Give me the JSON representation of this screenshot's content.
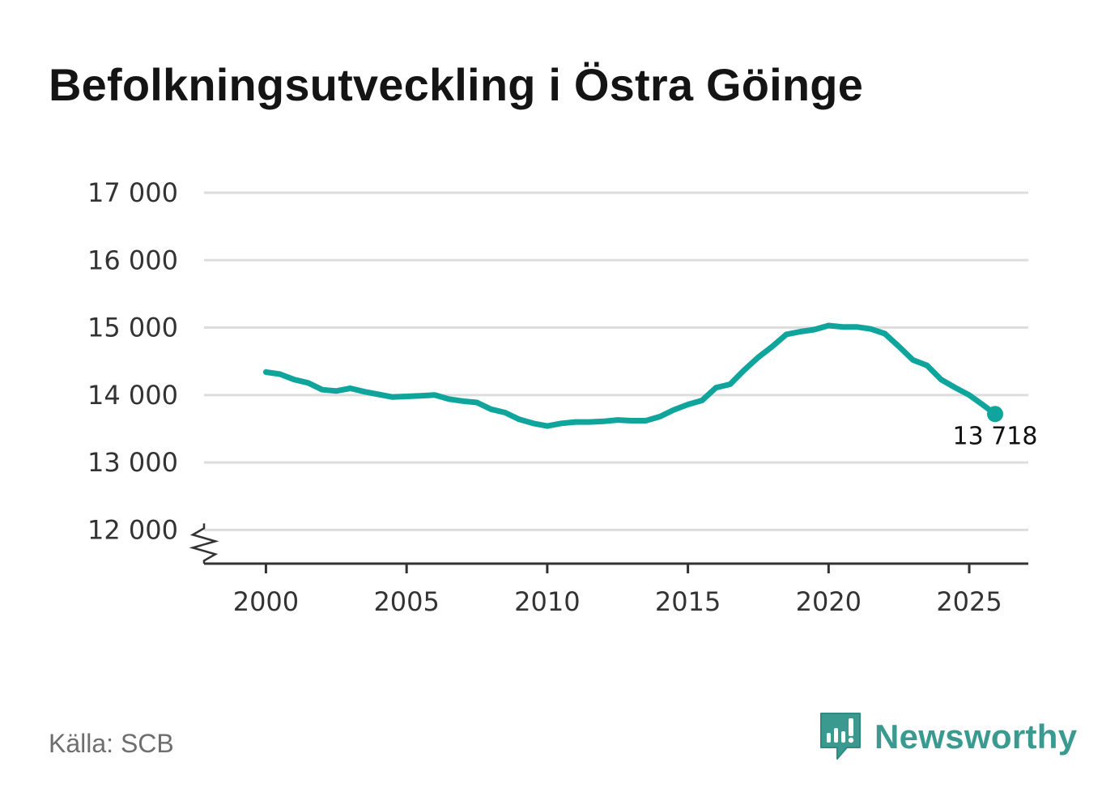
{
  "title": "Befolkningsutveckling i Östra Göinge",
  "source": "Källa: SCB",
  "brand": {
    "name": "Newsworthy",
    "logo_icon": "newsworthy-logo-icon",
    "color": "#3a9a90"
  },
  "chart_data": {
    "type": "line",
    "title": "Befolkningsutveckling i Östra Göinge",
    "xlabel": "",
    "ylabel": "",
    "xlim": [
      1997.8,
      2027.1
    ],
    "ylim": [
      11500,
      17000
    ],
    "x_ticks": [
      2000,
      2005,
      2010,
      2015,
      2020,
      2025
    ],
    "x_tick_labels": [
      "2000",
      "2005",
      "2010",
      "2015",
      "2020",
      "2025"
    ],
    "y_ticks": [
      12000,
      13000,
      14000,
      15000,
      16000,
      17000
    ],
    "y_tick_labels": [
      "12 000",
      "13 000",
      "14 000",
      "15 000",
      "16 000",
      "17 000"
    ],
    "y_axis_break": true,
    "grid": "horizontal",
    "line_color": "#10a59c",
    "grid_color": "#dddddd",
    "end_label": "13 718",
    "series": [
      {
        "x": [
          2000.0,
          2000.5,
          2001.0,
          2001.5,
          2002.0,
          2002.5,
          2003.0,
          2003.5,
          2004.0,
          2004.5,
          2005.0,
          2005.5,
          2006.0,
          2006.5,
          2007.0,
          2007.5,
          2008.0,
          2008.5,
          2009.0,
          2009.5,
          2010.0,
          2010.5,
          2011.0,
          2011.5,
          2012.0,
          2012.5,
          2013.0,
          2013.5,
          2014.0,
          2014.5,
          2015.0,
          2015.5,
          2016.0,
          2016.5,
          2017.0,
          2017.5,
          2018.0,
          2018.5,
          2019.0,
          2019.5,
          2020.0,
          2020.5,
          2021.0,
          2021.5,
          2022.0,
          2022.5,
          2023.0,
          2023.5,
          2024.0,
          2024.5,
          2025.0,
          2025.5,
          2025.92
        ],
        "values": [
          14340,
          14310,
          14230,
          14180,
          14080,
          14060,
          14100,
          14050,
          14010,
          13970,
          13980,
          13990,
          14000,
          13940,
          13910,
          13890,
          13790,
          13740,
          13640,
          13580,
          13540,
          13580,
          13600,
          13600,
          13610,
          13630,
          13620,
          13620,
          13680,
          13780,
          13860,
          13920,
          14110,
          14160,
          14370,
          14560,
          14720,
          14900,
          14940,
          14970,
          15030,
          15010,
          15010,
          14980,
          14910,
          14720,
          14520,
          14440,
          14230,
          14110,
          14000,
          13850,
          13718
        ]
      }
    ]
  }
}
